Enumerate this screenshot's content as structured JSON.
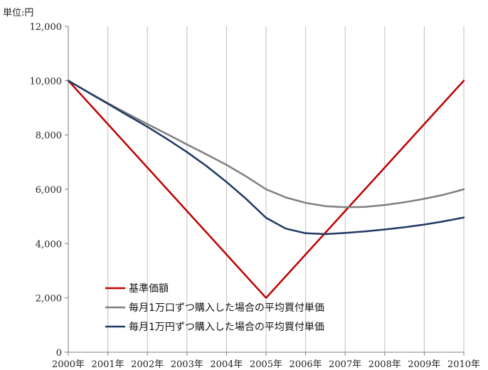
{
  "chart_data": {
    "type": "line",
    "y_unit_label": "単位:円",
    "ylim": [
      0,
      12000
    ],
    "y_ticks": [
      {
        "value": 0,
        "label": "0"
      },
      {
        "value": 2000,
        "label": "2,000"
      },
      {
        "value": 4000,
        "label": "4,000"
      },
      {
        "value": 6000,
        "label": "6,000"
      },
      {
        "value": 8000,
        "label": "8,000"
      },
      {
        "value": 10000,
        "label": "10,000"
      },
      {
        "value": 12000,
        "label": "12,000"
      }
    ],
    "xlim": [
      2000,
      2010
    ],
    "x_ticks": [
      {
        "value": 2000,
        "label": "2000年"
      },
      {
        "value": 2001,
        "label": "2001年"
      },
      {
        "value": 2002,
        "label": "2002年"
      },
      {
        "value": 2003,
        "label": "2003年"
      },
      {
        "value": 2004,
        "label": "2004年"
      },
      {
        "value": 2005,
        "label": "2005年"
      },
      {
        "value": 2006,
        "label": "2006年"
      },
      {
        "value": 2007,
        "label": "2007年"
      },
      {
        "value": 2008,
        "label": "2008年"
      },
      {
        "value": 2009,
        "label": "2009年"
      },
      {
        "value": 2010,
        "label": "2010年"
      }
    ],
    "grid": {
      "vertical": true,
      "horizontal": false
    },
    "legend_position": "bottom-left inside plot",
    "series": [
      {
        "name": "基準価額",
        "color": "#c00000",
        "points": [
          [
            2000,
            10000
          ],
          [
            2005,
            2000
          ],
          [
            2010,
            10000
          ]
        ]
      },
      {
        "name": "毎月1万口ずつ購入した場合の平均買付単価",
        "color": "#7f7f7f",
        "points": [
          [
            2000,
            10000
          ],
          [
            2000.5,
            9580
          ],
          [
            2001,
            9170
          ],
          [
            2001.5,
            8780
          ],
          [
            2002,
            8400
          ],
          [
            2002.5,
            8030
          ],
          [
            2003,
            7650
          ],
          [
            2003.5,
            7280
          ],
          [
            2004,
            6900
          ],
          [
            2004.5,
            6470
          ],
          [
            2005,
            6000
          ],
          [
            2005.5,
            5700
          ],
          [
            2006,
            5500
          ],
          [
            2006.5,
            5380
          ],
          [
            2007,
            5340
          ],
          [
            2007.5,
            5350
          ],
          [
            2008,
            5420
          ],
          [
            2008.5,
            5520
          ],
          [
            2009,
            5650
          ],
          [
            2009.5,
            5800
          ],
          [
            2010,
            6000
          ]
        ]
      },
      {
        "name": "毎月1万円ずつ購入した場合の平均買付単価",
        "color": "#1f3864",
        "points": [
          [
            2000,
            10000
          ],
          [
            2000.5,
            9570
          ],
          [
            2001,
            9150
          ],
          [
            2001.5,
            8720
          ],
          [
            2002,
            8300
          ],
          [
            2002.5,
            7850
          ],
          [
            2003,
            7370
          ],
          [
            2003.5,
            6850
          ],
          [
            2004,
            6270
          ],
          [
            2004.5,
            5640
          ],
          [
            2005,
            4950
          ],
          [
            2005.5,
            4550
          ],
          [
            2006,
            4380
          ],
          [
            2006.5,
            4350
          ],
          [
            2007,
            4390
          ],
          [
            2007.5,
            4450
          ],
          [
            2008,
            4520
          ],
          [
            2008.5,
            4600
          ],
          [
            2009,
            4700
          ],
          [
            2009.5,
            4820
          ],
          [
            2010,
            4960
          ]
        ]
      }
    ]
  }
}
